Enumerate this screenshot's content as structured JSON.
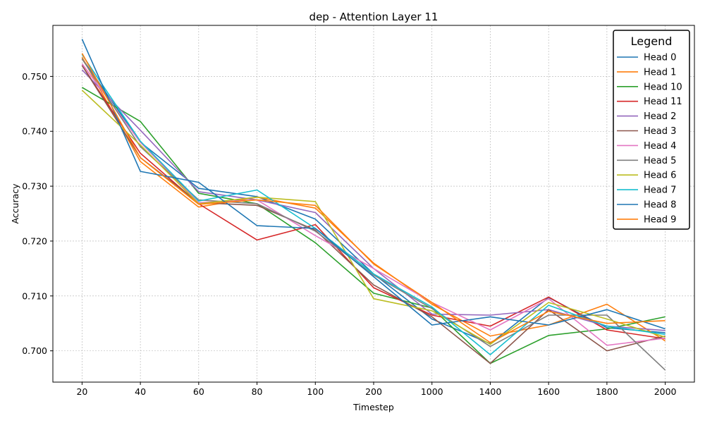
{
  "chart_data": {
    "type": "line",
    "title": "dep - Attention Layer 11",
    "xlabel": "Timestep",
    "ylabel": "Accuracy",
    "categories": [
      "20",
      "40",
      "60",
      "80",
      "100",
      "200",
      "1000",
      "1400",
      "1600",
      "1800",
      "2000"
    ],
    "ylim": [
      0.6943,
      0.7593
    ],
    "yticks": [
      "0.700",
      "0.710",
      "0.720",
      "0.730",
      "0.740",
      "0.750"
    ],
    "grid": true,
    "legend": {
      "title": "Legend",
      "placement": "top-right"
    },
    "series": [
      {
        "name": "Head 0",
        "color": "#1f77b4",
        "values": [
          0.7533,
          0.738,
          0.7296,
          0.7281,
          0.724,
          0.714,
          0.7058,
          0.7013,
          0.7097,
          0.7042,
          0.7033
        ]
      },
      {
        "name": "Head 1",
        "color": "#ff7f0e",
        "values": [
          0.7535,
          0.7345,
          0.7262,
          0.728,
          0.726,
          0.716,
          0.7085,
          0.7027,
          0.7047,
          0.7085,
          0.7018
        ]
      },
      {
        "name": "Head 10",
        "color": "#2ca02c",
        "values": [
          0.748,
          0.7418,
          0.7287,
          0.7268,
          0.7197,
          0.7105,
          0.7078,
          0.6977,
          0.7028,
          0.704,
          0.7062
        ]
      },
      {
        "name": "Head 11",
        "color": "#d62728",
        "values": [
          0.752,
          0.736,
          0.7268,
          0.7202,
          0.723,
          0.7115,
          0.7065,
          0.7045,
          0.7098,
          0.7038,
          0.7022
        ]
      },
      {
        "name": "Head 2",
        "color": "#9467bd",
        "values": [
          0.7512,
          0.7402,
          0.729,
          0.7275,
          0.7252,
          0.715,
          0.7067,
          0.7065,
          0.7075,
          0.7045,
          0.7037
        ]
      },
      {
        "name": "Head 3",
        "color": "#8c564b",
        "values": [
          0.752,
          0.7352,
          0.727,
          0.7265,
          0.722,
          0.712,
          0.7062,
          0.6977,
          0.7075,
          0.7,
          0.7027
        ]
      },
      {
        "name": "Head 4",
        "color": "#e377c2",
        "values": [
          0.7523,
          0.738,
          0.727,
          0.7275,
          0.721,
          0.715,
          0.7088,
          0.7038,
          0.7095,
          0.701,
          0.7023
        ]
      },
      {
        "name": "Head 5",
        "color": "#7f7f7f",
        "values": [
          0.7532,
          0.7372,
          0.7275,
          0.7268,
          0.7218,
          0.7138,
          0.7077,
          0.7008,
          0.7065,
          0.7065,
          0.6965
        ]
      },
      {
        "name": "Head 6",
        "color": "#bcbd22",
        "values": [
          0.7475,
          0.7375,
          0.7268,
          0.728,
          0.7272,
          0.7095,
          0.7073,
          0.7012,
          0.7088,
          0.7058,
          0.7025
        ]
      },
      {
        "name": "Head 7",
        "color": "#17becf",
        "values": [
          0.754,
          0.7382,
          0.7273,
          0.7293,
          0.7223,
          0.714,
          0.708,
          0.6993,
          0.7083,
          0.7045,
          0.703
        ]
      },
      {
        "name": "Head 8",
        "color": "#1f77b4",
        "values": [
          0.7568,
          0.7327,
          0.7307,
          0.7228,
          0.7223,
          0.7135,
          0.7047,
          0.7062,
          0.7047,
          0.7075,
          0.704
        ]
      },
      {
        "name": "Head 9",
        "color": "#ff7f0e",
        "values": [
          0.7542,
          0.7352,
          0.7267,
          0.7275,
          0.7265,
          0.7158,
          0.7088,
          0.7015,
          0.7072,
          0.705,
          0.7055
        ]
      }
    ]
  }
}
